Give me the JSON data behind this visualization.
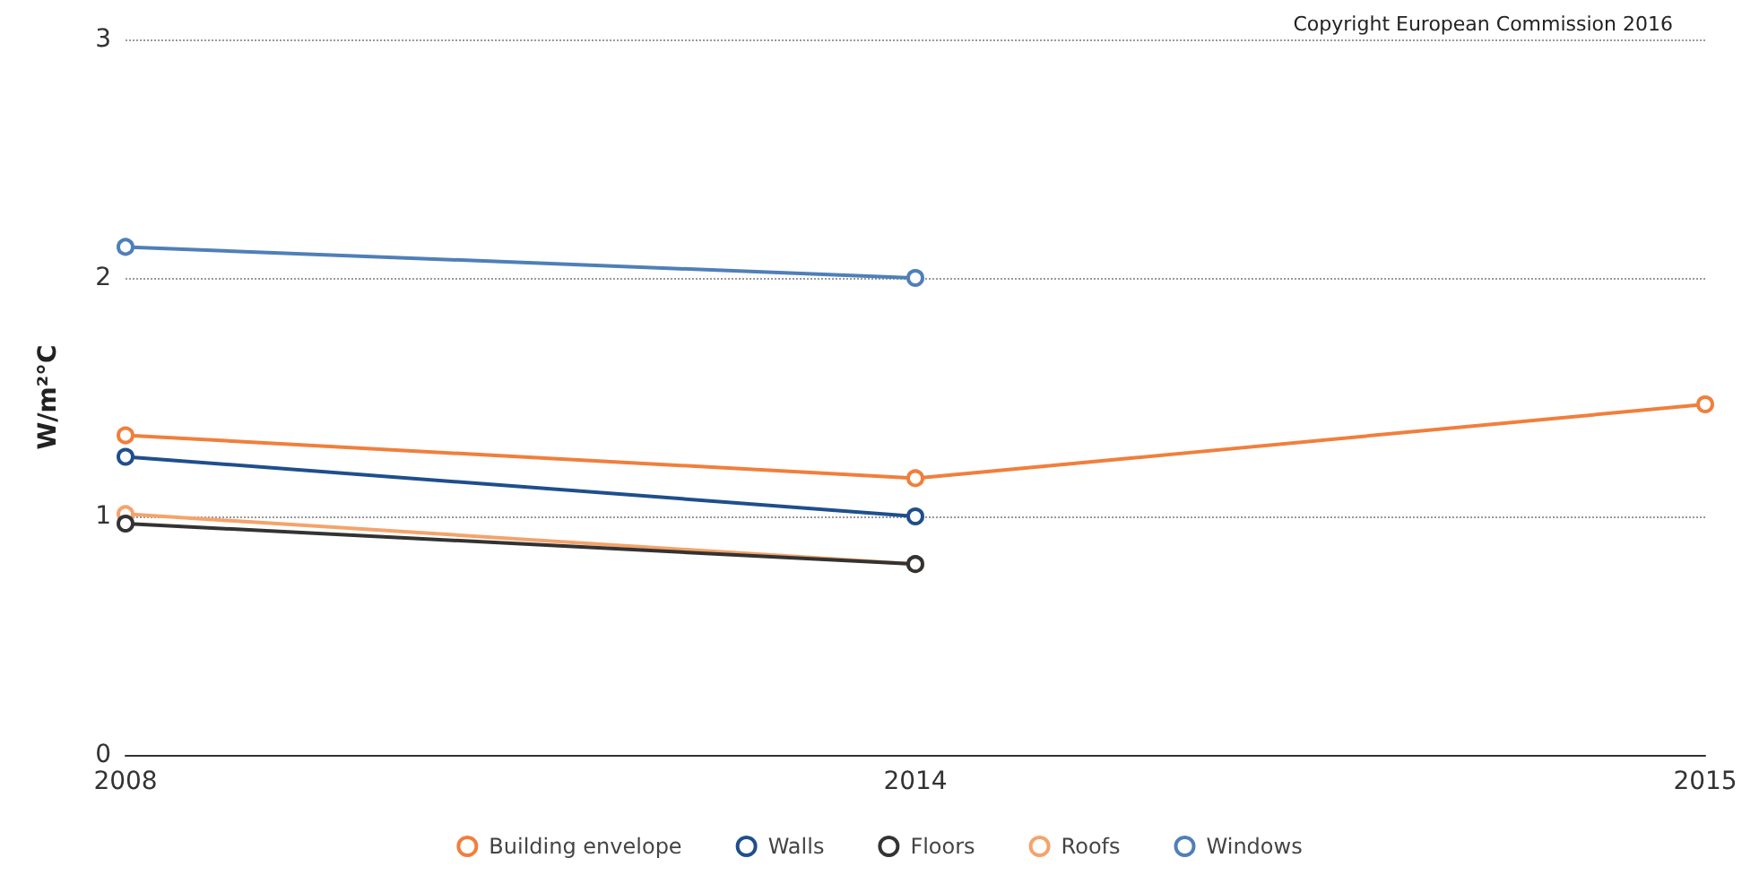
{
  "chart_data": {
    "type": "line",
    "ylabel": "W/m²°C",
    "annotations": [
      "Copyright European Commission 2016"
    ],
    "categories": [
      "2008",
      "2014",
      "2015"
    ],
    "ylim": [
      0,
      3
    ],
    "yticks": [
      0,
      1,
      2,
      3
    ],
    "grid": "y",
    "legend": "bottom",
    "marker": "circle",
    "line_style": "solid",
    "series": [
      {
        "name": "Building envelope",
        "color": "#f07f3c",
        "values": [
          1.34,
          1.16,
          1.47
        ]
      },
      {
        "name": "Walls",
        "color": "#1f4e8c",
        "values": [
          1.25,
          1.0,
          null
        ]
      },
      {
        "name": "Floors",
        "color": "#333333",
        "values": [
          0.97,
          0.8,
          null
        ]
      },
      {
        "name": "Roofs",
        "color": "#f4a36b",
        "values": [
          1.01,
          0.8,
          null
        ]
      },
      {
        "name": "Windows",
        "color": "#4f7fb8",
        "values": [
          2.13,
          2.0,
          null
        ]
      }
    ]
  }
}
